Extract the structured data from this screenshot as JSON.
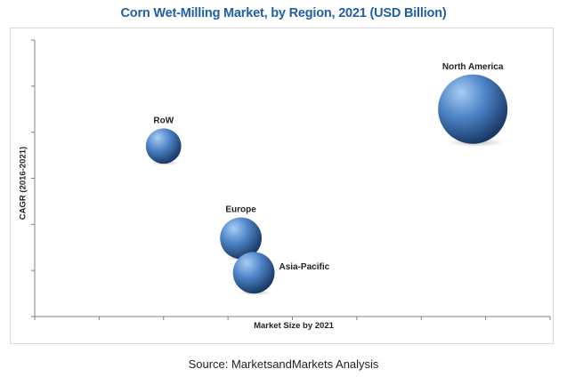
{
  "title": "Corn Wet-Milling Market, by Region, 2021 (USD Billion)",
  "source": "Source: MarketsandMarkets Analysis",
  "colors": {
    "title": "#1f5fa8",
    "bubble_light": "#a9cdf3",
    "bubble_mid": "#4f86c9",
    "bubble_dark": "#14335e",
    "axis": "#808080"
  },
  "chart_data": {
    "type": "bubble",
    "title": "Corn Wet-Milling Market, by Region, 2021 (USD Billion)",
    "xlabel": "Market Size by 2021",
    "ylabel": "CAGR (2016-2021)",
    "xlim": [
      0,
      8
    ],
    "ylim": [
      0,
      6
    ],
    "grid": false,
    "legend": "none",
    "points": [
      {
        "name": "North America",
        "x": 6.8,
        "y": 4.5,
        "size": 1.0
      },
      {
        "name": "RoW",
        "x": 2.0,
        "y": 3.7,
        "size": 0.26
      },
      {
        "name": "Europe",
        "x": 3.2,
        "y": 1.7,
        "size": 0.36
      },
      {
        "name": "Asia-Pacific",
        "x": 3.4,
        "y": 0.95,
        "size": 0.36
      }
    ]
  }
}
